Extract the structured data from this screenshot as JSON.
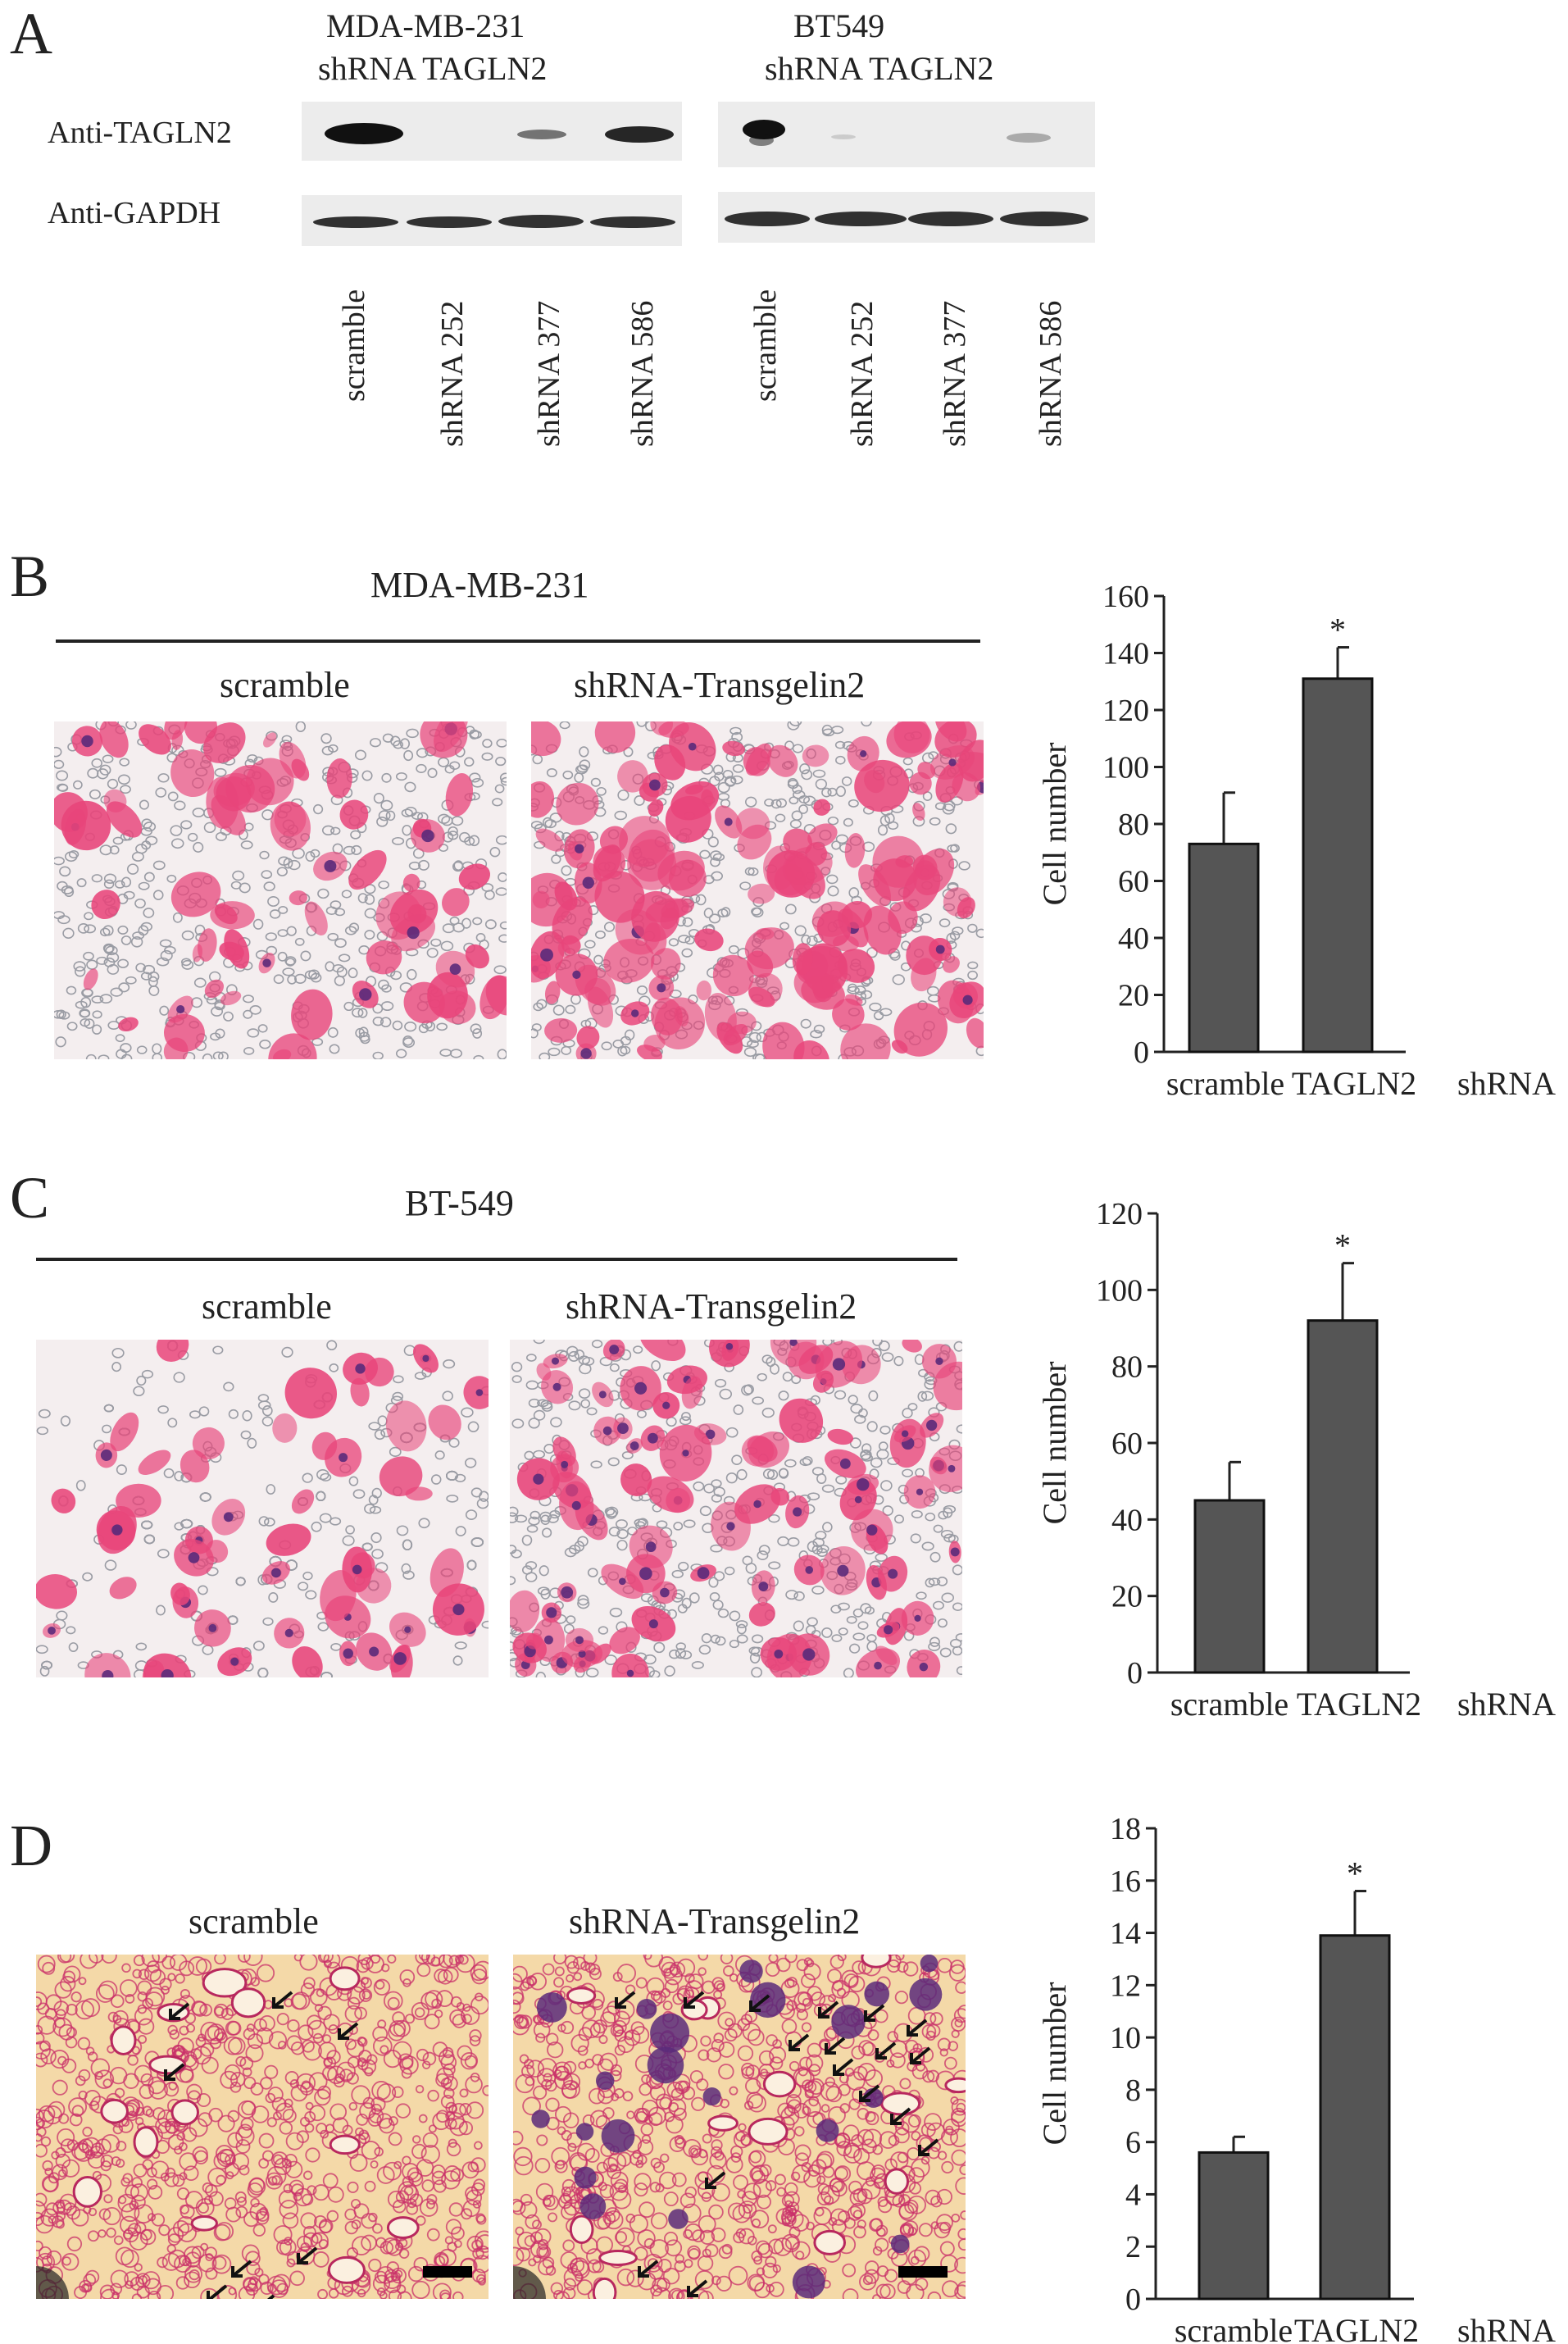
{
  "panelA": {
    "letter": "A",
    "groups": [
      {
        "line1": "MDA-MB-231",
        "line2": "shRNA TAGLN2"
      },
      {
        "line1": "BT549",
        "line2": "shRNA TAGLN2"
      }
    ],
    "rows": [
      "Anti-TAGLN2",
      "Anti-GAPDH"
    ],
    "lanes": [
      "scramble",
      "shRNA 252",
      "shRNA 377",
      "shRNA 586"
    ]
  },
  "panelB": {
    "letter": "B",
    "title": "MDA-MB-231",
    "left_label": "scramble",
    "right_label": "shRNA-Transgelin2"
  },
  "panelC": {
    "letter": "C",
    "title": "BT-549",
    "left_label": "scramble",
    "right_label": "shRNA-Transgelin2"
  },
  "panelD": {
    "letter": "D",
    "left_label": "scramble",
    "right_label": "shRNA-Transgelin2"
  },
  "colors": {
    "bar": "#555555",
    "stain_pink": "#e8457a",
    "stain_purple": "#5a2a7a",
    "tissue_bg": "#f4d9a8"
  },
  "chart_data": [
    {
      "type": "bar",
      "panel": "B",
      "categories": [
        "scramble",
        "TAGLN2"
      ],
      "category_suffix": "shRNA",
      "values": [
        73,
        131
      ],
      "errors": [
        18,
        11
      ],
      "significance": [
        "",
        "*"
      ],
      "ylabel": "Cell number",
      "ylim": [
        0,
        160
      ],
      "yticks": [
        0,
        20,
        40,
        60,
        80,
        100,
        120,
        140,
        160
      ]
    },
    {
      "type": "bar",
      "panel": "C",
      "categories": [
        "scramble",
        "TAGLN2"
      ],
      "category_suffix": "shRNA",
      "values": [
        45,
        92
      ],
      "errors": [
        10,
        15
      ],
      "significance": [
        "",
        "*"
      ],
      "ylabel": "Cell number",
      "ylim": [
        0,
        120
      ],
      "yticks": [
        0,
        20,
        40,
        60,
        80,
        100,
        120
      ]
    },
    {
      "type": "bar",
      "panel": "D",
      "categories": [
        "scramble",
        "TAGLN2"
      ],
      "category_suffix": "shRNA",
      "values": [
        5.6,
        13.9
      ],
      "errors": [
        0.6,
        1.7
      ],
      "significance": [
        "",
        "*"
      ],
      "ylabel": "Cell number",
      "ylim": [
        0,
        18
      ],
      "yticks": [
        0,
        2,
        4,
        6,
        8,
        10,
        12,
        14,
        16,
        18
      ]
    }
  ]
}
